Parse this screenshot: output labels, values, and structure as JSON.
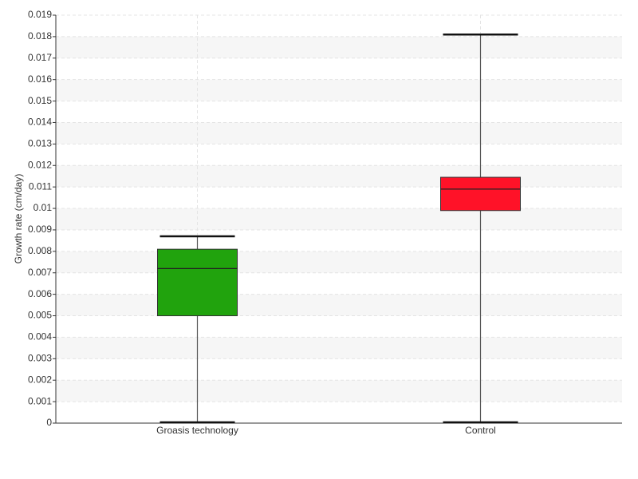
{
  "chart_data": {
    "type": "box",
    "y_label": "Growth rate (cm/day)",
    "categories": [
      "Groasis technology",
      "Control"
    ],
    "boxes": [
      {
        "min": 0,
        "q1": 0.005,
        "median": 0.0072,
        "q3": 0.0081,
        "max": 0.0087,
        "color": "#21a30d"
      },
      {
        "min": 0,
        "q1": 0.0099,
        "median": 0.0109,
        "q3": 0.01145,
        "max": 0.0181,
        "color": "#ff1228"
      }
    ],
    "ylim": [
      0,
      0.019
    ],
    "yticks": [
      0,
      0.001,
      0.002,
      0.003,
      0.004,
      0.005,
      0.006,
      0.007,
      0.008,
      0.009,
      0.01,
      0.011,
      0.012,
      0.013,
      0.014,
      0.015,
      0.016,
      0.017,
      0.018,
      0.019
    ],
    "grid": true
  }
}
